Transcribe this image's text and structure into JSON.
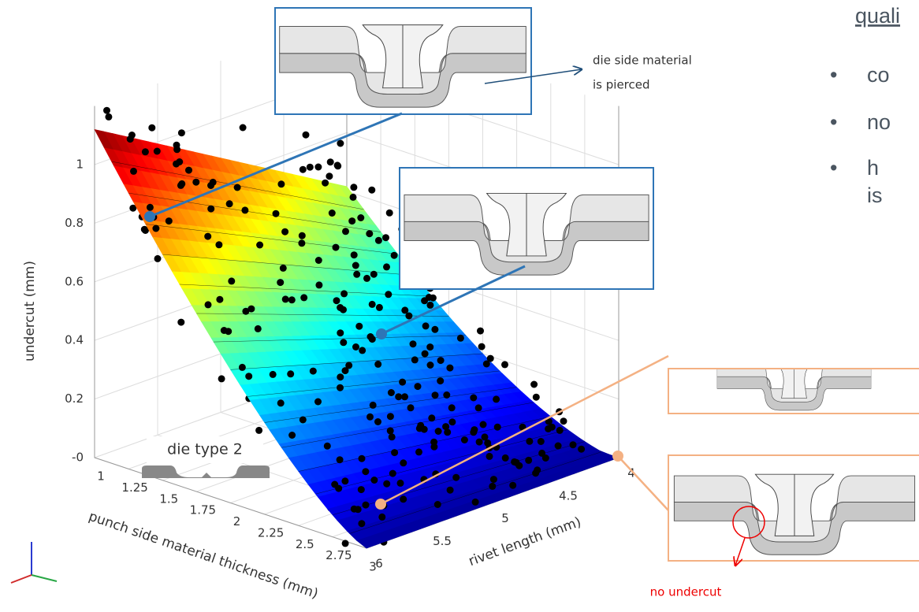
{
  "plot": {
    "z_label": "undercut (mm)",
    "x_label": "punch side material thickness (mm)",
    "y_label": "rivet length (mm)",
    "z_ticks": [
      "1",
      "0.8",
      "0.6",
      "0.4",
      "0.2",
      "-0"
    ],
    "x_ticks": [
      "1",
      "1.25",
      "1.5",
      "1.75",
      "2",
      "2.25",
      "2.5",
      "2.75",
      "3"
    ],
    "y_ticks": [
      "6",
      "5.5",
      "5",
      "4.5",
      "4"
    ]
  },
  "annotations": {
    "pierced_1": "die side material",
    "pierced_2": "is pierced",
    "die_type": "die type 2",
    "no_undercut": "no undercut"
  },
  "side_text": {
    "heading": "quali",
    "bullet_1": "co",
    "bullet_2": "no",
    "bullet_3": "h",
    "bullet_3b": "is"
  }
}
